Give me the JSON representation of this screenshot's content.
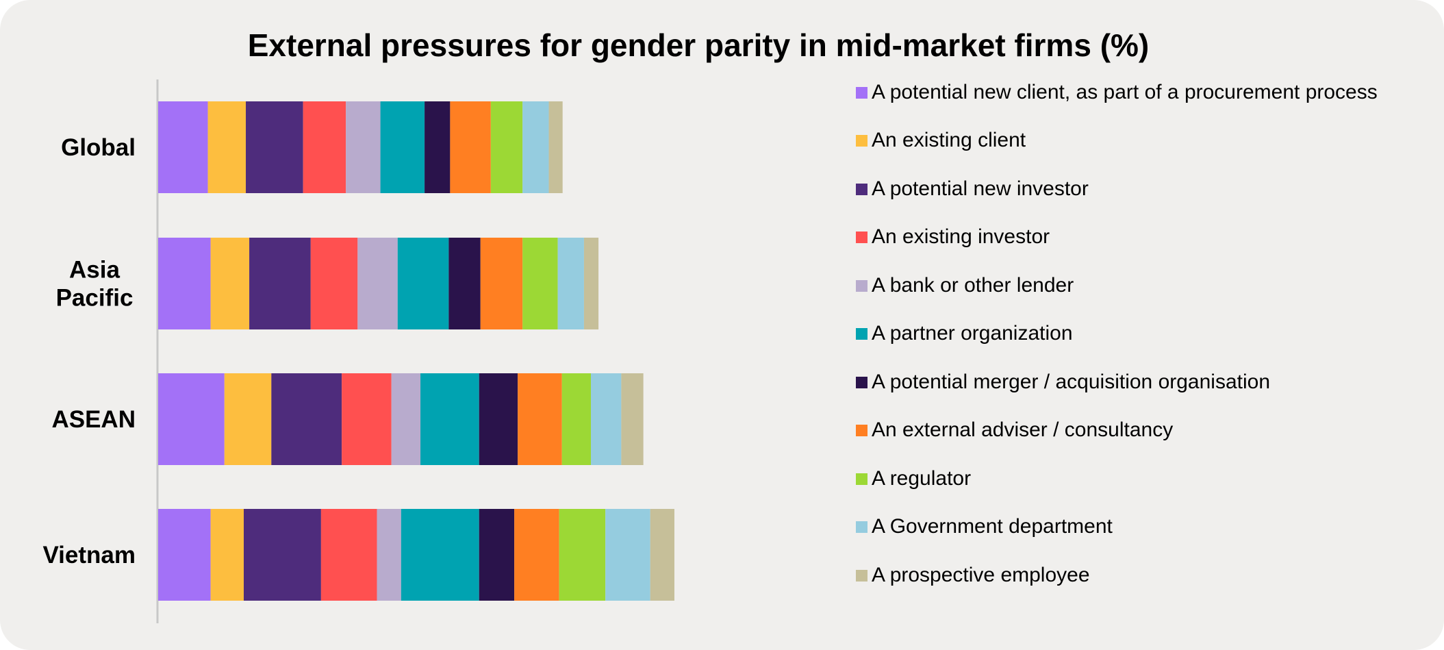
{
  "chart_data": {
    "type": "bar",
    "orientation": "horizontal",
    "stacked": true,
    "title": "External pressures for gender parity in mid-market firms (%)",
    "xlabel": "",
    "ylabel": "",
    "xlim": [
      0,
      100
    ],
    "grid": false,
    "legend_position": "right",
    "categories": [
      "Global",
      "Asia Pacific",
      "ASEAN",
      "Vietnam"
    ],
    "category_lines": [
      [
        "Global"
      ],
      [
        "Asia",
        "Pacific"
      ],
      [
        "ASEAN"
      ],
      [
        "Vietnam"
      ]
    ],
    "series": [
      {
        "name": "A potential new client, as part of a procurement process",
        "color": "#a371f7",
        "values": [
          7.2,
          7.6,
          9.6,
          7.6
        ]
      },
      {
        "name": "An existing client",
        "color": "#fdbe3f",
        "values": [
          5.5,
          5.6,
          6.8,
          4.8
        ]
      },
      {
        "name": "A potential new investor",
        "color": "#4e2c7c",
        "values": [
          8.3,
          8.9,
          10.2,
          11.2
        ]
      },
      {
        "name": "An existing investor",
        "color": "#ff5050",
        "values": [
          6.2,
          6.8,
          7.2,
          8.1
        ]
      },
      {
        "name": "A bank or other lender",
        "color": "#b8abcd",
        "values": [
          5.0,
          5.8,
          4.2,
          3.5
        ]
      },
      {
        "name": "A partner organization",
        "color": "#00a3b1",
        "values": [
          6.4,
          7.4,
          8.5,
          11.3
        ]
      },
      {
        "name": "A potential merger / acquisition organisation",
        "color": "#2a134b",
        "values": [
          3.7,
          4.6,
          5.6,
          5.1
        ]
      },
      {
        "name": "An external adviser / consultancy",
        "color": "#ff7f22",
        "values": [
          5.9,
          6.1,
          6.4,
          6.5
        ]
      },
      {
        "name": "A regulator",
        "color": "#9cd835",
        "values": [
          4.6,
          5.1,
          4.2,
          6.7
        ]
      },
      {
        "name": "A Government department",
        "color": "#95ccdf",
        "values": [
          3.8,
          3.8,
          4.4,
          6.5
        ]
      },
      {
        "name": "A prospective employee",
        "color": "#c6bf99",
        "values": [
          2.0,
          2.1,
          3.2,
          3.5
        ]
      }
    ]
  }
}
